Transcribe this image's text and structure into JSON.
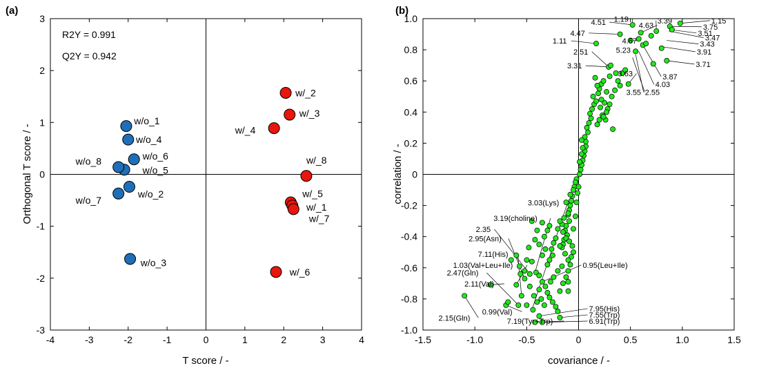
{
  "chart_data": [
    {
      "panel_label": "(a)",
      "type": "scatter",
      "xlabel": "T score / -",
      "ylabel": "Orthogonal T score / -",
      "xlim": [
        -4,
        4
      ],
      "ylim": [
        -3,
        3
      ],
      "x_ticks": [
        -4,
        -3,
        -2,
        -1,
        0,
        1,
        2,
        3,
        4
      ],
      "y_ticks": [
        -3,
        -2,
        -1,
        0,
        1,
        2,
        3
      ],
      "x_tick_labels": [
        "-4",
        "-3",
        "-2",
        "-1",
        "0",
        "1",
        "2",
        "3",
        "4"
      ],
      "y_tick_labels": [
        "-3",
        "-2",
        "-1",
        "0",
        "1",
        "2",
        "3"
      ],
      "stats": [
        "R2Y = 0.991",
        "Q2Y = 0.942"
      ],
      "series": [
        {
          "name": "w/o",
          "color": "#1f6fb8",
          "points": [
            {
              "label": "w/o_1",
              "x": -2.05,
              "y": 0.93,
              "lx": -1.85,
              "ly": 1.03
            },
            {
              "label": "w/o_4",
              "x": -2.0,
              "y": 0.67,
              "lx": -1.8,
              "ly": 0.67
            },
            {
              "label": "w/o_6",
              "x": -1.85,
              "y": 0.29,
              "lx": -1.63,
              "ly": 0.35
            },
            {
              "label": "w/o_5",
              "x": -2.1,
              "y": 0.09,
              "lx": -1.63,
              "ly": 0.08
            },
            {
              "label": "w/o_8",
              "x": -2.25,
              "y": 0.14,
              "lx": -3.35,
              "ly": 0.25
            },
            {
              "label": "w/o_2",
              "x": -1.97,
              "y": -0.24,
              "lx": -1.75,
              "ly": -0.38
            },
            {
              "label": "w/o_7",
              "x": -2.25,
              "y": -0.37,
              "lx": -3.35,
              "ly": -0.5
            },
            {
              "label": "w/o_3",
              "x": -1.95,
              "y": -1.63,
              "lx": -1.68,
              "ly": -1.7
            }
          ]
        },
        {
          "name": "w/",
          "color": "#e8160c",
          "points": [
            {
              "label": "w/_2",
              "x": 2.05,
              "y": 1.57,
              "lx": 2.3,
              "ly": 1.57
            },
            {
              "label": "w/_3",
              "x": 2.15,
              "y": 1.15,
              "lx": 2.4,
              "ly": 1.18
            },
            {
              "label": "w/_4",
              "x": 1.75,
              "y": 0.89,
              "lx": 0.75,
              "ly": 0.85
            },
            {
              "label": "w/_8",
              "x": 2.58,
              "y": -0.03,
              "lx": 2.58,
              "ly": 0.27
            },
            {
              "label": "w/_5",
              "x": 2.18,
              "y": -0.54,
              "lx": 2.48,
              "ly": -0.37
            },
            {
              "label": "w/_1",
              "x": 2.22,
              "y": -0.6,
              "lx": 2.58,
              "ly": -0.63
            },
            {
              "label": "w/_7",
              "x": 2.25,
              "y": -0.67,
              "lx": 2.65,
              "ly": -0.85
            },
            {
              "label": "w/_6",
              "x": 1.8,
              "y": -1.88,
              "lx": 2.15,
              "ly": -1.88
            }
          ]
        }
      ]
    },
    {
      "panel_label": "(b)",
      "type": "scatter",
      "xlabel": "covariance / -",
      "ylabel": "correlation / -",
      "xlim": [
        -1.5,
        1.5
      ],
      "ylim": [
        -1.0,
        1.0
      ],
      "x_ticks": [
        -1.5,
        -1.0,
        -0.5,
        0,
        0.5,
        1.0,
        1.5
      ],
      "y_ticks": [
        -1.0,
        -0.8,
        -0.6,
        -0.4,
        -0.2,
        0,
        0.2,
        0.4,
        0.6,
        0.8,
        1.0
      ],
      "x_tick_labels": [
        "-1.5",
        "-1.0",
        "-0.5",
        "0",
        "0.5",
        "1.0",
        "1.5"
      ],
      "y_tick_labels": [
        "-1.0",
        "-0.8",
        "-0.6",
        "-0.4",
        "-0.2",
        "0",
        "0.2",
        "0.4",
        "0.6",
        "0.8",
        "1.0"
      ],
      "point_color": "#22e61d",
      "points": [
        [
          0.02,
          0.03
        ],
        [
          0.01,
          0.0
        ],
        [
          -0.02,
          -0.03
        ],
        [
          0.03,
          0.06
        ],
        [
          -0.03,
          -0.05
        ],
        [
          0.04,
          0.09
        ],
        [
          -0.04,
          -0.08
        ],
        [
          0.05,
          0.12
        ],
        [
          -0.05,
          -0.1
        ],
        [
          0.06,
          0.15
        ],
        [
          -0.06,
          -0.14
        ],
        [
          0.07,
          0.18
        ],
        [
          -0.07,
          -0.17
        ],
        [
          0.07,
          0.21
        ],
        [
          -0.08,
          -0.2
        ],
        [
          0.06,
          0.24
        ],
        [
          -0.09,
          -0.23
        ],
        [
          0.09,
          0.27
        ],
        [
          -0.1,
          -0.26
        ],
        [
          0.08,
          0.3
        ],
        [
          -0.09,
          -0.3
        ],
        [
          0.1,
          0.33
        ],
        [
          -0.12,
          -0.33
        ],
        [
          0.12,
          0.36
        ],
        [
          -0.13,
          -0.36
        ],
        [
          0.11,
          0.39
        ],
        [
          -0.11,
          -0.39
        ],
        [
          0.13,
          0.42
        ],
        [
          -0.14,
          -0.42
        ],
        [
          0.15,
          0.45
        ],
        [
          -0.15,
          -0.45
        ],
        [
          0.17,
          0.47
        ],
        [
          -0.16,
          -0.47
        ],
        [
          0.14,
          0.5
        ],
        [
          0.19,
          0.52
        ],
        [
          0.2,
          0.55
        ],
        [
          0.22,
          0.58
        ],
        [
          0.24,
          0.6
        ],
        [
          0.16,
          0.62
        ],
        [
          0.18,
          0.57
        ],
        [
          0.21,
          0.43
        ],
        [
          0.23,
          0.38
        ],
        [
          0.26,
          0.35
        ],
        [
          0.28,
          0.42
        ],
        [
          0.3,
          0.45
        ],
        [
          0.32,
          0.5
        ],
        [
          0.27,
          0.53
        ],
        [
          0.25,
          0.46
        ],
        [
          0.22,
          0.48
        ],
        [
          0.33,
          0.29
        ],
        [
          0.35,
          0.54
        ],
        [
          0.38,
          0.6
        ],
        [
          0.4,
          0.57
        ],
        [
          0.36,
          0.65
        ],
        [
          0.3,
          0.63
        ],
        [
          0.29,
          0.69
        ],
        [
          0.31,
          0.7
        ],
        [
          0.42,
          0.65
        ],
        [
          0.27,
          0.4
        ],
        [
          0.2,
          0.35
        ],
        [
          0.18,
          0.32
        ],
        [
          0.24,
          0.37
        ],
        [
          0.45,
          0.67
        ],
        [
          0.48,
          0.58
        ],
        [
          0.5,
          0.86
        ],
        [
          0.52,
          0.96
        ],
        [
          0.55,
          0.79
        ],
        [
          0.58,
          0.87
        ],
        [
          0.62,
          0.83
        ],
        [
          0.65,
          0.84
        ],
        [
          0.7,
          0.89
        ],
        [
          0.75,
          0.92
        ],
        [
          0.8,
          0.81
        ],
        [
          0.85,
          0.73
        ],
        [
          0.88,
          0.95
        ],
        [
          0.9,
          0.93
        ],
        [
          0.98,
          0.97
        ],
        [
          0.72,
          0.71
        ],
        [
          0.6,
          0.91
        ],
        [
          0.17,
          0.84
        ],
        [
          0.4,
          0.9
        ],
        [
          -0.08,
          -0.13
        ],
        [
          -0.12,
          -0.18
        ],
        [
          -0.1,
          -0.25
        ],
        [
          -0.14,
          -0.28
        ],
        [
          -0.16,
          -0.32
        ],
        [
          -0.18,
          -0.3
        ],
        [
          -0.2,
          -0.35
        ],
        [
          -0.15,
          -0.37
        ],
        [
          -0.12,
          -0.41
        ],
        [
          -0.09,
          -0.43
        ],
        [
          -0.06,
          -0.46
        ],
        [
          -0.05,
          -0.5
        ],
        [
          -0.07,
          -0.53
        ],
        [
          -0.1,
          -0.55
        ],
        [
          -0.08,
          -0.58
        ],
        [
          -0.18,
          -0.46
        ],
        [
          -0.22,
          -0.41
        ],
        [
          -0.24,
          -0.44
        ],
        [
          -0.26,
          -0.48
        ],
        [
          -0.25,
          -0.52
        ],
        [
          -0.28,
          -0.55
        ],
        [
          -0.3,
          -0.58
        ],
        [
          -0.32,
          -0.48
        ],
        [
          -0.35,
          -0.52
        ],
        [
          -0.38,
          -0.45
        ],
        [
          -0.33,
          -0.4
        ],
        [
          -0.3,
          -0.36
        ],
        [
          -0.28,
          -0.33
        ],
        [
          -0.35,
          -0.31
        ],
        [
          -0.4,
          -0.36
        ],
        [
          -0.45,
          -0.3
        ],
        [
          -0.42,
          -0.42
        ],
        [
          -0.48,
          -0.47
        ],
        [
          -0.5,
          -0.55
        ],
        [
          -0.45,
          -0.56
        ],
        [
          -0.41,
          -0.63
        ],
        [
          -0.38,
          -0.65
        ],
        [
          -0.35,
          -0.69
        ],
        [
          -0.32,
          -0.72
        ],
        [
          -0.3,
          -0.76
        ],
        [
          -0.28,
          -0.79
        ],
        [
          -0.25,
          -0.82
        ],
        [
          -0.22,
          -0.85
        ],
        [
          -0.2,
          -0.88
        ],
        [
          -0.18,
          -0.75
        ],
        [
          -0.15,
          -0.7
        ],
        [
          -0.12,
          -0.66
        ],
        [
          -0.1,
          -0.62
        ],
        [
          -0.43,
          -0.78
        ],
        [
          -0.47,
          -0.72
        ],
        [
          -0.52,
          -0.62
        ],
        [
          -0.57,
          -0.59
        ],
        [
          -0.6,
          -0.52
        ],
        [
          -0.55,
          -0.78
        ],
        [
          -0.5,
          -0.84
        ],
        [
          -0.44,
          -0.87
        ],
        [
          -0.4,
          -0.82
        ],
        [
          -0.36,
          -0.8
        ],
        [
          -0.33,
          -0.84
        ],
        [
          -0.65,
          -0.55
        ],
        [
          -0.05,
          -0.35
        ],
        [
          -0.03,
          -0.27
        ],
        [
          -0.02,
          -0.18
        ],
        [
          -0.01,
          -0.12
        ],
        [
          0.0,
          -0.08
        ],
        [
          0.01,
          0.08
        ],
        [
          0.03,
          0.13
        ],
        [
          0.04,
          0.17
        ],
        [
          0.03,
          0.22
        ],
        [
          -0.13,
          -0.51
        ],
        [
          -0.1,
          -0.69
        ],
        [
          -0.16,
          -0.59
        ],
        [
          -0.2,
          -0.62
        ],
        [
          -0.24,
          -0.66
        ],
        [
          -0.27,
          -0.69
        ],
        [
          -0.1,
          -0.75
        ],
        [
          -0.38,
          -0.74
        ],
        [
          -1.1,
          -0.78
        ],
        [
          -0.85,
          -0.71
        ],
        [
          -0.7,
          -0.84
        ],
        [
          -0.68,
          -0.82
        ],
        [
          -0.58,
          -0.84
        ],
        [
          -0.42,
          -0.95
        ],
        [
          -0.35,
          -0.95
        ],
        [
          -0.38,
          -0.91
        ],
        [
          -0.18,
          -0.92
        ],
        [
          -0.52,
          -0.67
        ],
        [
          -0.56,
          -0.64
        ],
        [
          -0.6,
          -0.71
        ],
        [
          -0.47,
          -0.64
        ]
      ],
      "annotations": [
        {
          "text": "1.15",
          "x": 0.98,
          "y": 0.97,
          "lx": 1.28,
          "ly": 0.97
        },
        {
          "text": "3.75",
          "x": 0.9,
          "y": 0.95,
          "lx": 1.2,
          "ly": 0.93
        },
        {
          "text": "3.51",
          "x": 0.88,
          "y": 0.93,
          "lx": 1.15,
          "ly": 0.89
        },
        {
          "text": "3.47",
          "x": 0.87,
          "y": 0.92,
          "lx": 1.22,
          "ly": 0.86
        },
        {
          "text": "3.43",
          "x": 0.85,
          "y": 0.86,
          "lx": 1.17,
          "ly": 0.82
        },
        {
          "text": "3.91",
          "x": 0.8,
          "y": 0.82,
          "lx": 1.14,
          "ly": 0.77
        },
        {
          "text": "3.71",
          "x": 0.85,
          "y": 0.73,
          "lx": 1.13,
          "ly": 0.69
        },
        {
          "text": "3.39",
          "x": 0.75,
          "y": 0.92,
          "lx": 0.76,
          "ly": 0.97
        },
        {
          "text": "1.19",
          "x": 0.52,
          "y": 0.96,
          "lx": 0.34,
          "ly": 0.98
        },
        {
          "text": "4.51",
          "x": 0.52,
          "y": 0.96,
          "lx": 0.12,
          "ly": 0.96
        },
        {
          "text": "4.63",
          "x": 0.6,
          "y": 0.91,
          "lx": 0.58,
          "ly": 0.94
        },
        {
          "text": "4.47",
          "x": 0.4,
          "y": 0.9,
          "lx": -0.08,
          "ly": 0.89
        },
        {
          "text": "1.11",
          "x": 0.17,
          "y": 0.84,
          "lx": -0.25,
          "ly": 0.84
        },
        {
          "text": "4.67",
          "x": 0.5,
          "y": 0.86,
          "lx": 0.42,
          "ly": 0.84
        },
        {
          "text": "5.23",
          "x": 0.55,
          "y": 0.79,
          "lx": 0.36,
          "ly": 0.78
        },
        {
          "text": "2.51",
          "x": 0.29,
          "y": 0.69,
          "lx": -0.05,
          "ly": 0.77
        },
        {
          "text": "3.31",
          "x": 0.29,
          "y": 0.69,
          "lx": -0.11,
          "ly": 0.68
        },
        {
          "text": "3.63",
          "x": 0.48,
          "y": 0.58,
          "lx": 0.38,
          "ly": 0.63
        },
        {
          "text": "3.87",
          "x": 0.62,
          "y": 0.83,
          "lx": 0.81,
          "ly": 0.61
        },
        {
          "text": "4.03",
          "x": 0.58,
          "y": 0.79,
          "lx": 0.74,
          "ly": 0.56
        },
        {
          "text": "2.55",
          "x": 0.55,
          "y": 0.77,
          "lx": 0.64,
          "ly": 0.51
        },
        {
          "text": "3.55",
          "x": 0.52,
          "y": 0.75,
          "lx": 0.46,
          "ly": 0.51
        },
        {
          "text": "3.03(Lys)",
          "x": -0.45,
          "y": -0.87,
          "lx": -0.49,
          "ly": -0.2
        },
        {
          "text": "3.19(choline)",
          "x": -0.42,
          "y": -0.63,
          "lx": -0.82,
          "ly": -0.3
        },
        {
          "text": "2.35",
          "x": -0.47,
          "y": -0.64,
          "lx": -0.99,
          "ly": -0.37
        },
        {
          "text": "2.95(Asn)",
          "x": -0.52,
          "y": -0.67,
          "lx": -1.06,
          "ly": -0.43
        },
        {
          "text": "7.11(His)",
          "x": -0.55,
          "y": -0.78,
          "lx": -0.97,
          "ly": -0.53
        },
        {
          "text": "1.03(Val+Leu+Ile)",
          "x": -0.6,
          "y": -0.71,
          "lx": -1.21,
          "ly": -0.6
        },
        {
          "text": "2.47(Gln)",
          "x": -0.58,
          "y": -0.84,
          "lx": -1.27,
          "ly": -0.65
        },
        {
          "text": "0.95(Leu+Ile)",
          "x": -0.35,
          "y": -0.69,
          "lx": 0.04,
          "ly": -0.6
        },
        {
          "text": "2.11(Val)",
          "x": -0.85,
          "y": -0.71,
          "lx": -1.1,
          "ly": -0.72
        },
        {
          "text": "0.99(Val)",
          "x": -0.7,
          "y": -0.84,
          "lx": -0.93,
          "ly": -0.9
        },
        {
          "text": "2.15(Gln)",
          "x": -1.1,
          "y": -0.78,
          "lx": -1.35,
          "ly": -0.94
        },
        {
          "text": "7.95(His)",
          "x": -0.38,
          "y": -0.91,
          "lx": 0.1,
          "ly": -0.88
        },
        {
          "text": "7.55(Trp)",
          "x": -0.18,
          "y": -0.92,
          "lx": 0.1,
          "ly": -0.92
        },
        {
          "text": "7.19(Tyr+Trp)",
          "x": -0.42,
          "y": -0.95,
          "lx": -0.69,
          "ly": -0.96
        },
        {
          "text": "6.91(Trp)",
          "x": -0.35,
          "y": -0.95,
          "lx": 0.1,
          "ly": -0.96
        }
      ]
    }
  ]
}
